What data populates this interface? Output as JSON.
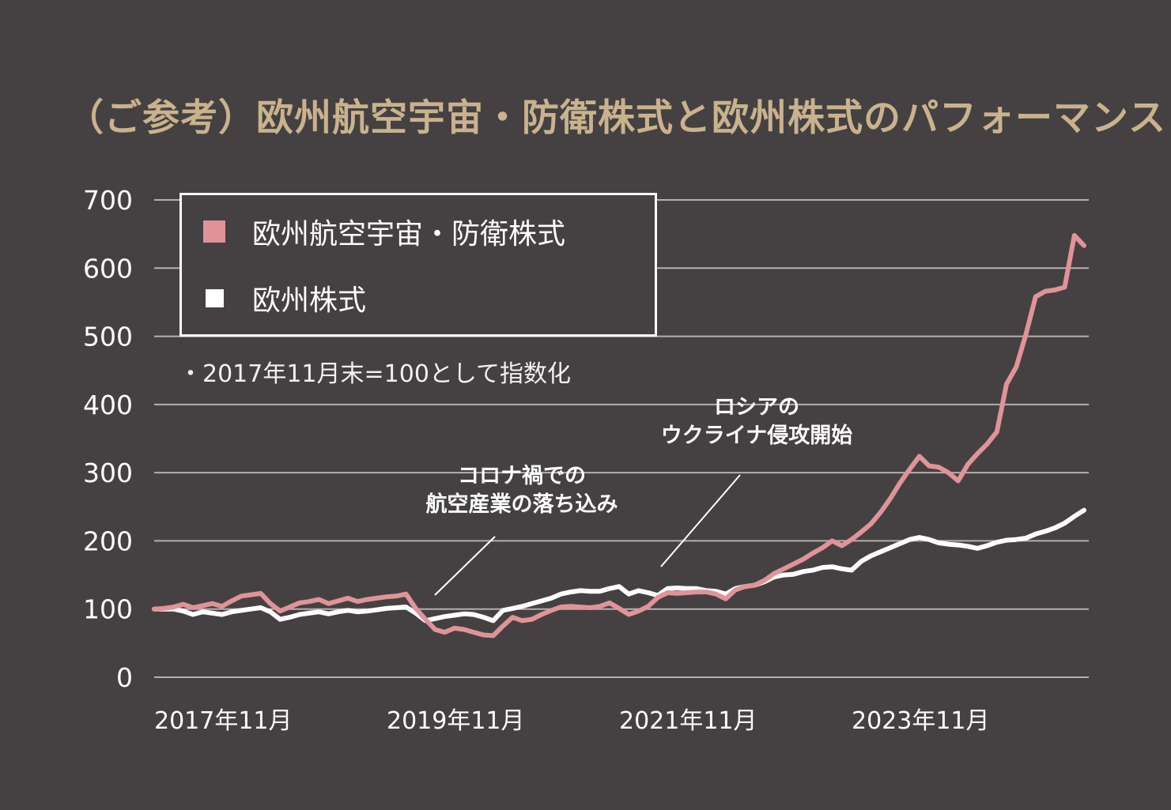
{
  "title": "（ご参考）欧州航空宇宙・防衛株式と欧州株式のパフォーマンス",
  "index_note": "・2017年11月末=100として指数化",
  "colors": {
    "background": "#454142",
    "title": "#C9B28D",
    "gridline": "#B3B0B0",
    "aerospace_line": "#E09399",
    "europe_line": "#FFFFFF",
    "text": "#FFFFFF"
  },
  "legend": {
    "items": [
      {
        "label": "欧州航空宇宙・防衛株式",
        "color": "#E09399"
      },
      {
        "label": "欧州株式",
        "color": "#FFFFFF"
      }
    ]
  },
  "chart_data": {
    "type": "line",
    "title": "（ご参考）欧州航空宇宙・防衛株式と欧州株式のパフォーマンス",
    "xlabel": "",
    "ylabel": "",
    "ylim": [
      0,
      700
    ],
    "grid": "horizontal",
    "legend_position": "top-left-box",
    "y_ticks": [
      0,
      100,
      200,
      300,
      400,
      500,
      600,
      700
    ],
    "x_ticks": [
      {
        "month_index": 0,
        "label": "2017年11月"
      },
      {
        "month_index": 24,
        "label": "2019年11月"
      },
      {
        "month_index": 48,
        "label": "2021年11月"
      },
      {
        "month_index": 72,
        "label": "2023年11月"
      }
    ],
    "x_note": "monthly values indexed to 100 at end of Nov 2017",
    "series": [
      {
        "name": "欧州航空宇宙・防衛株式",
        "color": "#E09399",
        "values": [
          100,
          101,
          103,
          107,
          102,
          105,
          108,
          104,
          112,
          119,
          121,
          123,
          108,
          97,
          103,
          109,
          111,
          114,
          108,
          112,
          116,
          111,
          114,
          116,
          118,
          119,
          122,
          101,
          85,
          70,
          66,
          72,
          70,
          66,
          62,
          61,
          75,
          88,
          83,
          85,
          92,
          98,
          103,
          104,
          103,
          102,
          104,
          109,
          101,
          92,
          97,
          104,
          117,
          124,
          123,
          124,
          125,
          125,
          122,
          115,
          128,
          133,
          135,
          142,
          152,
          159,
          166,
          173,
          182,
          190,
          200,
          193,
          202,
          213,
          225,
          242,
          262,
          285,
          305,
          324,
          310,
          308,
          300,
          288,
          312,
          328,
          342,
          360,
          430,
          455,
          503,
          558,
          566,
          568,
          572,
          648,
          633
        ]
      },
      {
        "name": "欧州株式",
        "color": "#FFFFFF",
        "values": [
          100,
          100,
          100,
          97,
          92,
          96,
          94,
          92,
          96,
          98,
          100,
          102,
          96,
          85,
          88,
          92,
          94,
          96,
          93,
          96,
          98,
          96,
          97,
          99,
          101,
          102,
          103,
          94,
          83,
          86,
          89,
          91,
          93,
          92,
          88,
          83,
          98,
          101,
          104,
          108,
          112,
          116,
          122,
          125,
          127,
          126,
          126,
          130,
          133,
          122,
          127,
          124,
          120,
          130,
          131,
          130,
          130,
          127,
          126,
          122,
          130,
          133,
          135,
          140,
          147,
          150,
          151,
          155,
          157,
          161,
          162,
          159,
          157,
          170,
          178,
          184,
          190,
          196,
          202,
          205,
          202,
          197,
          195,
          194,
          192,
          189,
          193,
          198,
          201,
          202,
          204,
          210,
          214,
          219,
          226,
          236,
          245
        ]
      }
    ],
    "annotations": [
      {
        "line1": "コロナ禍での",
        "line2": "航空産業の落ち込み",
        "points_to": "2020年前半の急落"
      },
      {
        "line1": "ロシアの",
        "line2": "ウクライナ侵攻開始",
        "points_to": "2022年2月"
      }
    ]
  }
}
